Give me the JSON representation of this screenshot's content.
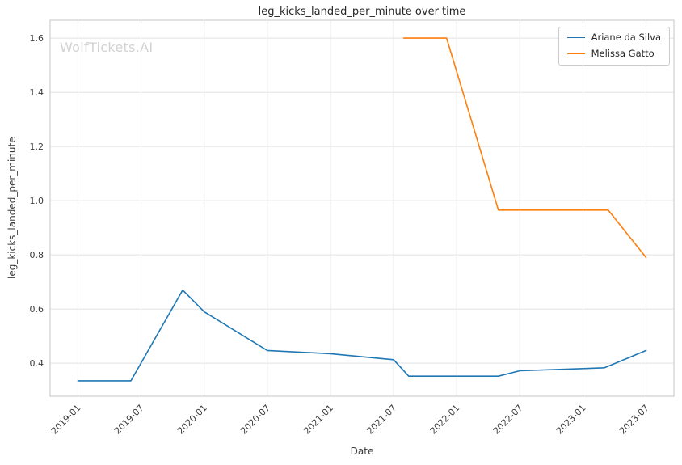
{
  "watermark": "WolfTickets.AI",
  "chart_data": {
    "type": "line",
    "title": "leg_kicks_landed_per_minute over time",
    "xlabel": "Date",
    "ylabel": "leg_kicks_landed_per_minute",
    "grid": true,
    "legend_position": "upper right",
    "xlim": [
      2018.78,
      2023.72
    ],
    "ylim": [
      0.278,
      1.666
    ],
    "xticks": [
      {
        "value": 2019.0,
        "label": "2019-01"
      },
      {
        "value": 2019.5,
        "label": "2019-07"
      },
      {
        "value": 2020.0,
        "label": "2020-01"
      },
      {
        "value": 2020.5,
        "label": "2020-07"
      },
      {
        "value": 2021.0,
        "label": "2021-01"
      },
      {
        "value": 2021.5,
        "label": "2021-07"
      },
      {
        "value": 2022.0,
        "label": "2022-01"
      },
      {
        "value": 2022.5,
        "label": "2022-07"
      },
      {
        "value": 2023.0,
        "label": "2023-01"
      },
      {
        "value": 2023.5,
        "label": "2023-07"
      }
    ],
    "yticks": [
      {
        "value": 0.4,
        "label": "0.4"
      },
      {
        "value": 0.6,
        "label": "0.6"
      },
      {
        "value": 0.8,
        "label": "0.8"
      },
      {
        "value": 1.0,
        "label": "1.0"
      },
      {
        "value": 1.2,
        "label": "1.2"
      },
      {
        "value": 1.4,
        "label": "1.4"
      },
      {
        "value": 1.6,
        "label": "1.6"
      }
    ],
    "series": [
      {
        "name": "Ariane da Silva",
        "color": "#1f77b4",
        "points": [
          [
            2019.0,
            0.335
          ],
          [
            2019.42,
            0.335
          ],
          [
            2019.83,
            0.67
          ],
          [
            2020.0,
            0.59
          ],
          [
            2020.5,
            0.447
          ],
          [
            2021.0,
            0.435
          ],
          [
            2021.5,
            0.413
          ],
          [
            2021.62,
            0.352
          ],
          [
            2022.33,
            0.352
          ],
          [
            2022.5,
            0.372
          ],
          [
            2023.0,
            0.38
          ],
          [
            2023.17,
            0.383
          ],
          [
            2023.5,
            0.447
          ]
        ]
      },
      {
        "name": "Melissa Gatto",
        "color": "#ff7f0e",
        "points": [
          [
            2021.58,
            1.6
          ],
          [
            2021.92,
            1.6
          ],
          [
            2022.33,
            0.965
          ],
          [
            2023.2,
            0.965
          ],
          [
            2023.5,
            0.79
          ]
        ]
      }
    ],
    "style": {
      "grid_color": "#e0e0e0",
      "border_color": "#cfcfcf",
      "background": "#ffffff"
    }
  }
}
